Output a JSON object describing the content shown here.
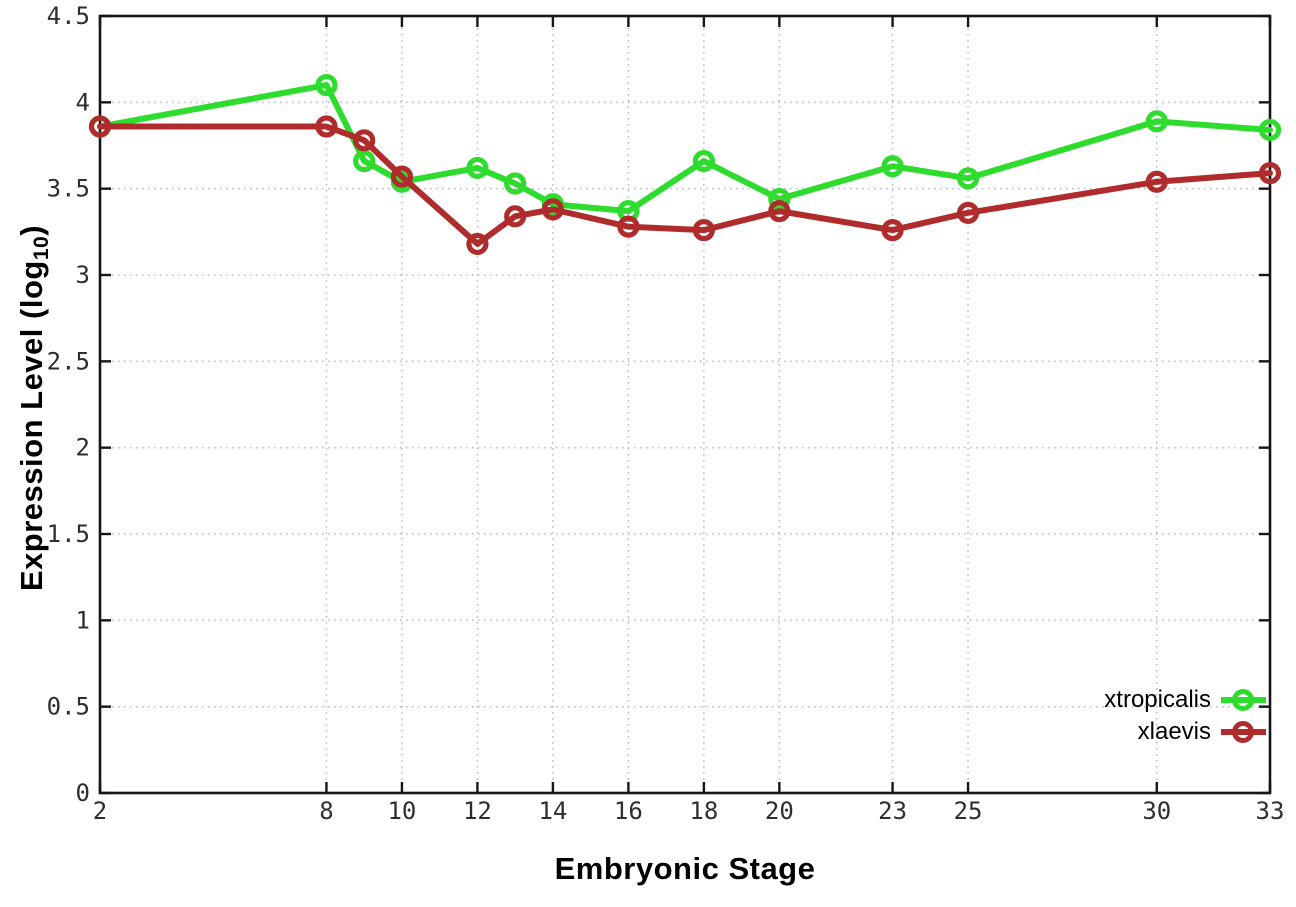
{
  "chart_data": {
    "type": "line",
    "title": "",
    "xlabel": "Embryonic Stage",
    "ylabel": "Expression Level (log10)",
    "ylabel_rich": {
      "pre": "Expression Level (log",
      "sub": "10",
      "post": ")"
    },
    "x": [
      2,
      8,
      9,
      10,
      12,
      13,
      14,
      16,
      18,
      20,
      23,
      25,
      30,
      33
    ],
    "series": [
      {
        "name": "xtropicalis",
        "color": "#2edc2e",
        "values": [
          3.86,
          4.1,
          3.66,
          3.54,
          3.62,
          3.53,
          3.41,
          3.37,
          3.66,
          3.44,
          3.63,
          3.56,
          3.89,
          3.84
        ]
      },
      {
        "name": "xlaevis",
        "color": "#b02c2c",
        "values": [
          3.86,
          3.86,
          3.78,
          3.57,
          3.18,
          3.34,
          3.38,
          3.28,
          3.26,
          3.37,
          3.26,
          3.36,
          3.54,
          3.59
        ]
      }
    ],
    "xticks": [
      2,
      8,
      10,
      12,
      14,
      16,
      18,
      20,
      23,
      25,
      30,
      33
    ],
    "yticks": [
      0,
      0.5,
      1,
      1.5,
      2,
      2.5,
      3,
      3.5,
      4,
      4.5
    ],
    "xlim": [
      2,
      33
    ],
    "ylim": [
      0,
      4.5
    ],
    "grid": true,
    "legend_position": "inside-bottom-right",
    "marker": "open-circle"
  },
  "style": {
    "background": "#ffffff",
    "grid_color": "#b6bcc8",
    "axis_color": "#161616",
    "tick_label_color": "#2e2e2e"
  }
}
